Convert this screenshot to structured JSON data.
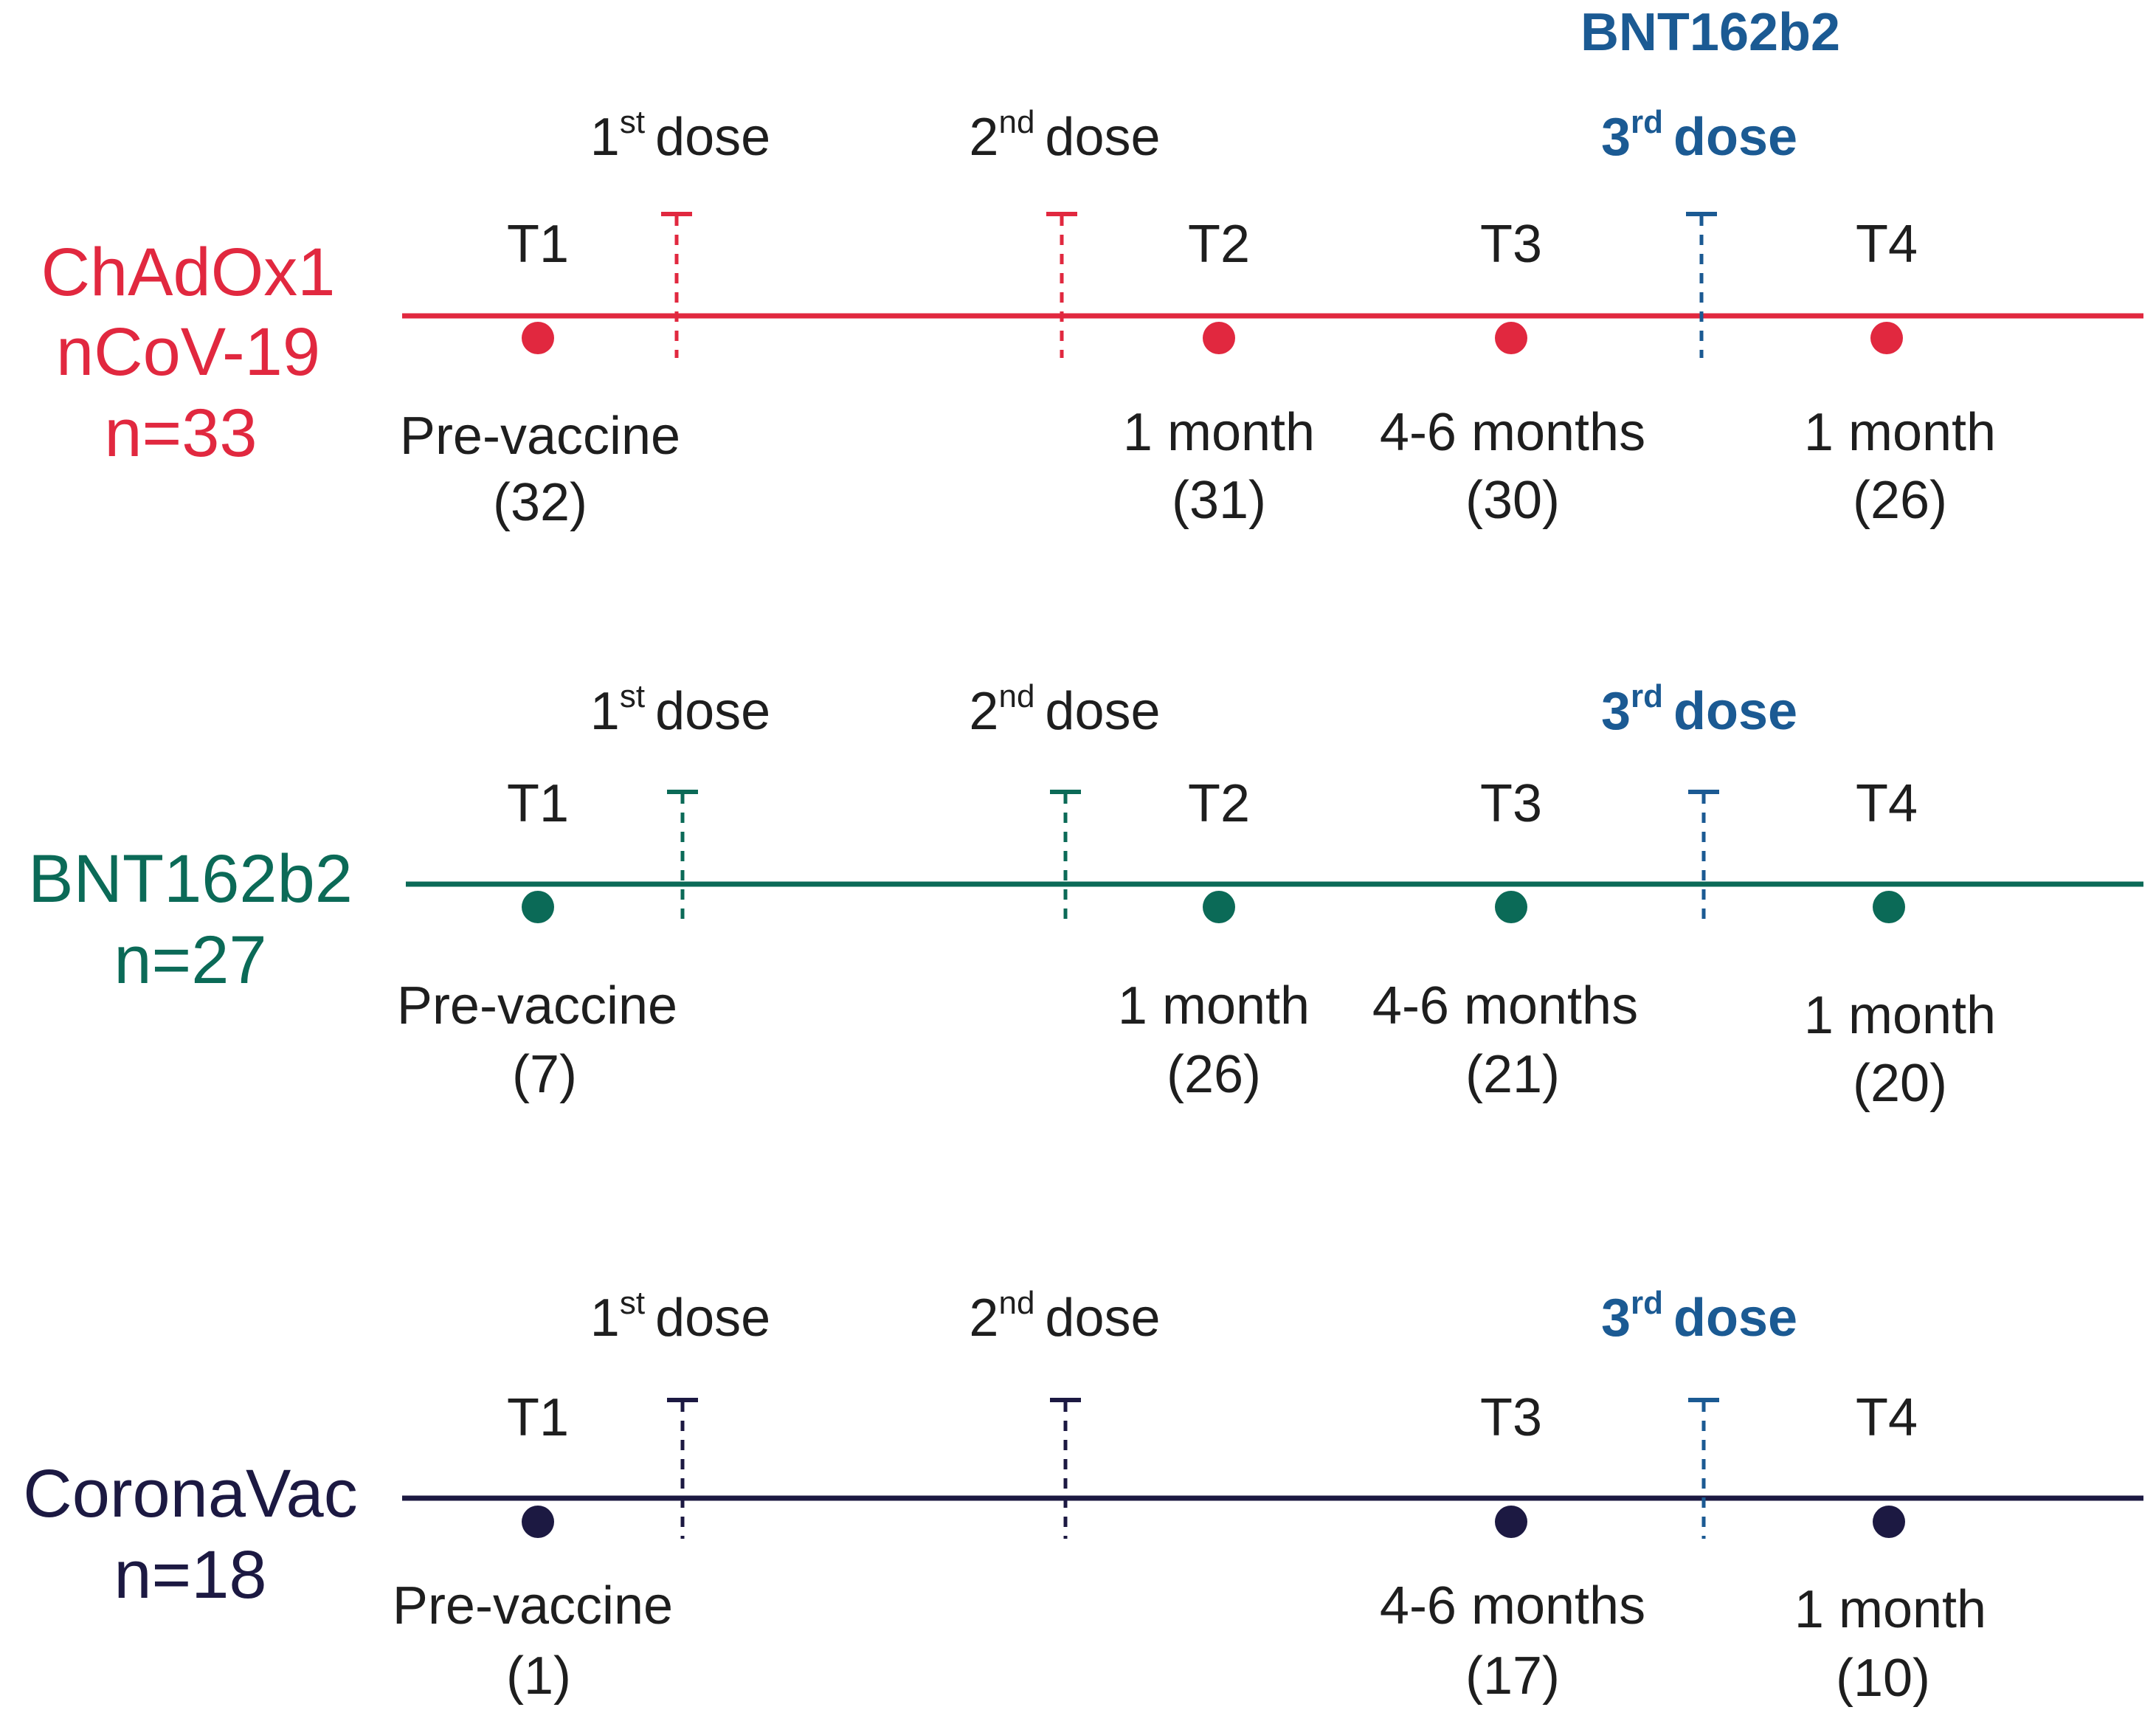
{
  "colors": {
    "chadox": "#e1283f",
    "bnt": "#0b6a57",
    "coronavac": "#1c1942",
    "booster": "#1b5a93",
    "text": "#1e1e1e"
  },
  "booster_brand": "BNT162b2",
  "dose_labels": {
    "first": {
      "num": "1",
      "sup": "st",
      "word": "dose"
    },
    "second": {
      "num": "2",
      "sup": "nd",
      "word": "dose"
    },
    "third": {
      "num": "3",
      "sup": "rd",
      "word": "dose"
    }
  },
  "cohorts": [
    {
      "name_lines": [
        "ChAdOx1",
        "nCoV-19",
        "n=33"
      ],
      "color_key": "chadox",
      "points": [
        {
          "id": "T1",
          "label": "Pre-vaccine",
          "count": "(32)"
        },
        {
          "id": "T2",
          "label": "1 month",
          "count": "(31)"
        },
        {
          "id": "T3",
          "label": "4-6 months",
          "count": "(30)"
        },
        {
          "id": "T4",
          "label": "1 month",
          "count": "(26)"
        }
      ]
    },
    {
      "name_lines": [
        "BNT162b2",
        "n=27"
      ],
      "color_key": "bnt",
      "points": [
        {
          "id": "T1",
          "label": "Pre-vaccine",
          "count": "(7)"
        },
        {
          "id": "T2",
          "label": "1 month",
          "count": "(26)"
        },
        {
          "id": "T3",
          "label": "4-6 months",
          "count": "(21)"
        },
        {
          "id": "T4",
          "label": "1 month",
          "count": "(20)"
        }
      ]
    },
    {
      "name_lines": [
        "CoronaVac",
        "n=18"
      ],
      "color_key": "coronavac",
      "points": [
        {
          "id": "T1",
          "label": "Pre-vaccine",
          "count": "(1)"
        },
        {
          "id": "T3",
          "label": "4-6 months",
          "count": "(17)"
        },
        {
          "id": "T4",
          "label": "1 month",
          "count": "(10)"
        }
      ]
    }
  ]
}
